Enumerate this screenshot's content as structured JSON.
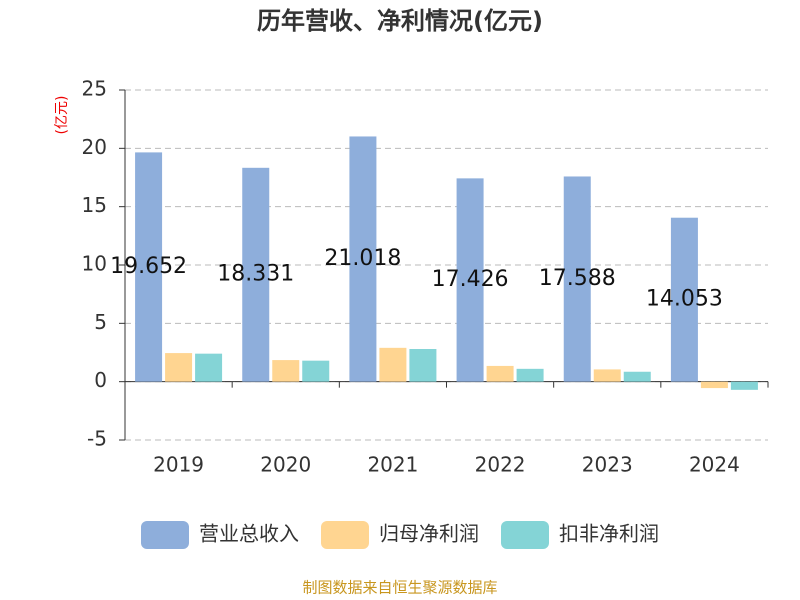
{
  "chart_data": {
    "type": "bar",
    "title": "历年营收、净利情况(亿元)",
    "y_label": "(亿元)",
    "categories": [
      "2019",
      "2020",
      "2021",
      "2022",
      "2023",
      "2024"
    ],
    "series": [
      {
        "name": "营业总收入",
        "color": "#8eaedb",
        "values": [
          19.652,
          18.331,
          21.018,
          17.426,
          17.588,
          14.053
        ],
        "labels": true
      },
      {
        "name": "归母净利润",
        "color": "#ffd591",
        "values": [
          2.45,
          1.85,
          2.9,
          1.35,
          1.05,
          -0.55
        ]
      },
      {
        "name": "扣非净利润",
        "color": "#84d4d6",
        "values": [
          2.4,
          1.8,
          2.8,
          1.1,
          0.85,
          -0.7
        ]
      }
    ],
    "ylim": [
      -5,
      25
    ],
    "yticks": [
      -5,
      0,
      5,
      10,
      15,
      20,
      25
    ],
    "grid": true,
    "source": "制图数据来自恒生聚源数据库"
  }
}
